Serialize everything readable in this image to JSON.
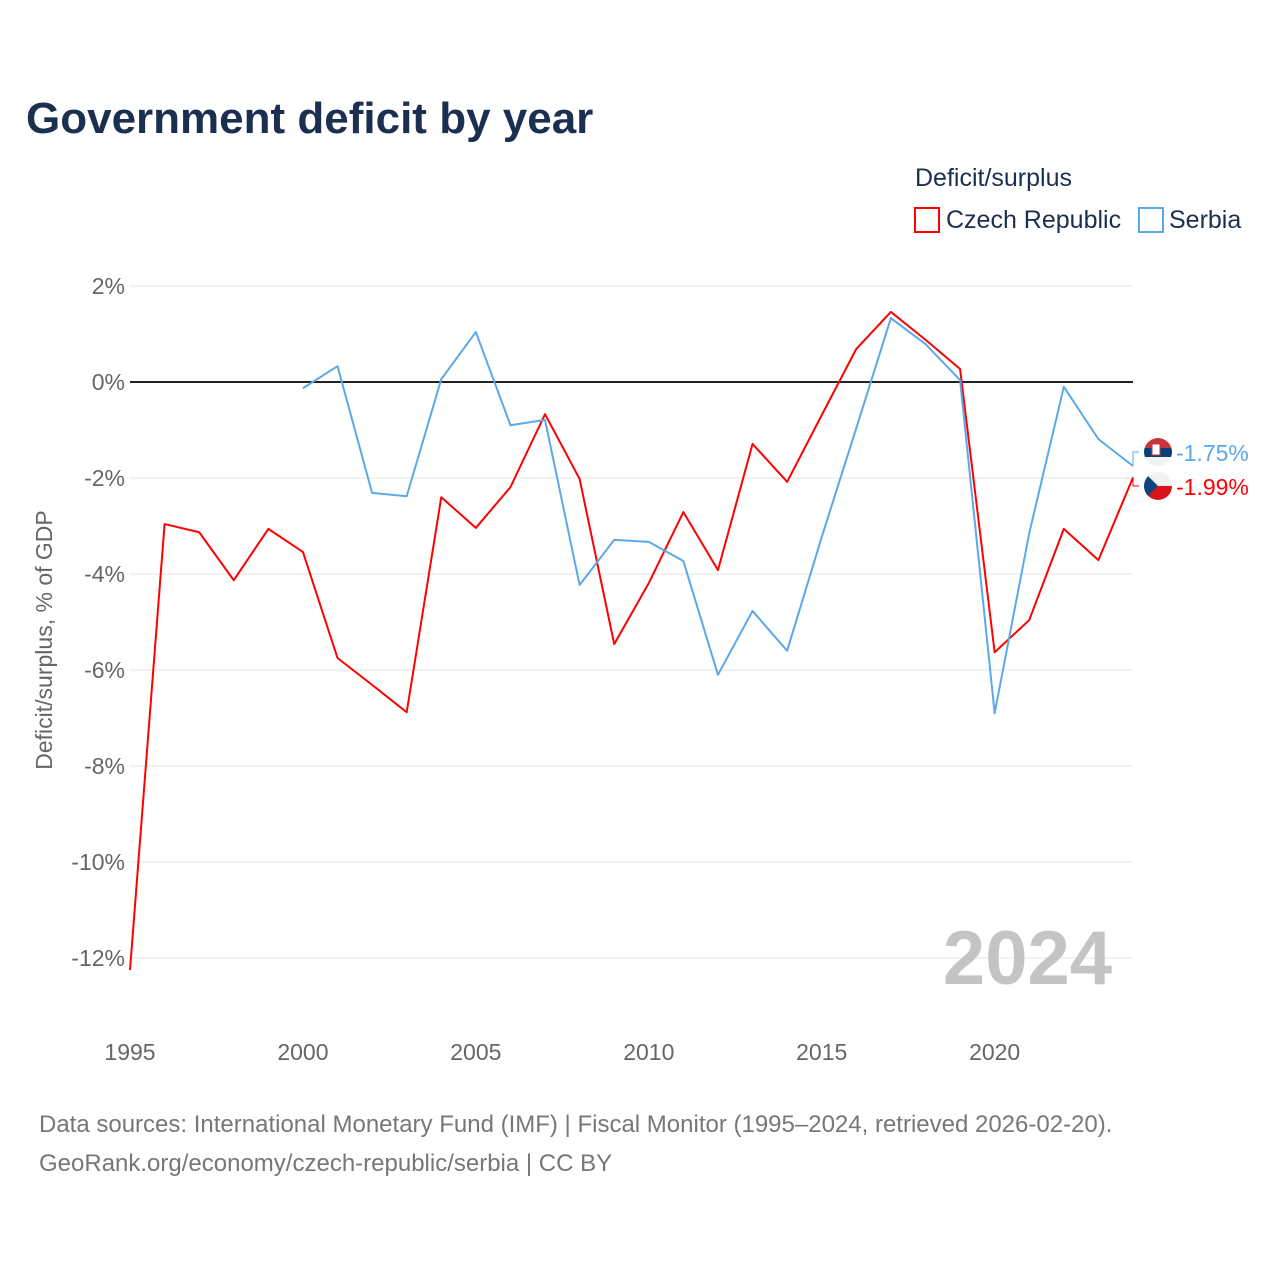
{
  "chart_data": {
    "type": "line",
    "title": "Government deficit by year",
    "ylabel": "Deficit/surplus, % of GDP",
    "xlabel": "",
    "legend_title": "Deficit/surplus",
    "legend_placement": "top-right",
    "ylim": [
      -12,
      2
    ],
    "xlim": [
      1995,
      2024
    ],
    "y_ticks": [
      2,
      0,
      -2,
      -4,
      -6,
      -8,
      -10,
      -12
    ],
    "y_tick_labels": [
      "2%",
      "0%",
      "-2%",
      "-4%",
      "-6%",
      "-8%",
      "-10%",
      "-12%"
    ],
    "x_ticks": [
      1995,
      2000,
      2005,
      2010,
      2015,
      2020
    ],
    "x_tick_labels": [
      "1995",
      "2000",
      "2005",
      "2010",
      "2015",
      "2020"
    ],
    "grid": true,
    "year_watermark": "2024",
    "series": [
      {
        "name": "Czech Republic",
        "color": "#ff0000",
        "end_label": "-1.99%",
        "x": [
          1995,
          1996,
          1997,
          1998,
          1999,
          2000,
          2001,
          2002,
          2003,
          2004,
          2005,
          2006,
          2007,
          2008,
          2009,
          2010,
          2011,
          2012,
          2013,
          2014,
          2015,
          2016,
          2017,
          2018,
          2019,
          2020,
          2021,
          2022,
          2023,
          2024
        ],
        "values": [
          -12.25,
          -2.96,
          -3.13,
          -4.13,
          -3.06,
          -3.54,
          -5.75,
          -6.31,
          -6.88,
          -2.4,
          -3.04,
          -2.19,
          -0.67,
          -2.02,
          -5.46,
          -4.19,
          -2.71,
          -3.92,
          -1.29,
          -2.08,
          -0.69,
          0.69,
          1.46,
          0.88,
          0.27,
          -5.63,
          -4.96,
          -3.06,
          -3.71,
          -1.99
        ]
      },
      {
        "name": "Serbia",
        "color": "#5ba8ea",
        "end_label": "-1.75%",
        "x": [
          2000,
          2001,
          2002,
          2003,
          2004,
          2005,
          2006,
          2007,
          2008,
          2009,
          2010,
          2011,
          2012,
          2013,
          2014,
          2015,
          2016,
          2017,
          2018,
          2019,
          2020,
          2021,
          2022,
          2023,
          2024
        ],
        "values": [
          -0.13,
          0.33,
          -2.31,
          -2.38,
          0.06,
          1.04,
          -0.9,
          -0.79,
          -4.23,
          -3.29,
          -3.33,
          -3.73,
          -6.1,
          -4.77,
          -5.6,
          -3.23,
          -0.96,
          1.33,
          0.79,
          0.04,
          -6.9,
          -3.15,
          -0.1,
          -1.19,
          -1.75
        ]
      }
    ]
  },
  "footer": {
    "sources": "Data sources: International Monetary Fund (IMF) | Fiscal Monitor (1995–2024, retrieved 2026-02-20).",
    "credit": "GeoRank.org/economy/czech-republic/serbia | CC BY"
  }
}
